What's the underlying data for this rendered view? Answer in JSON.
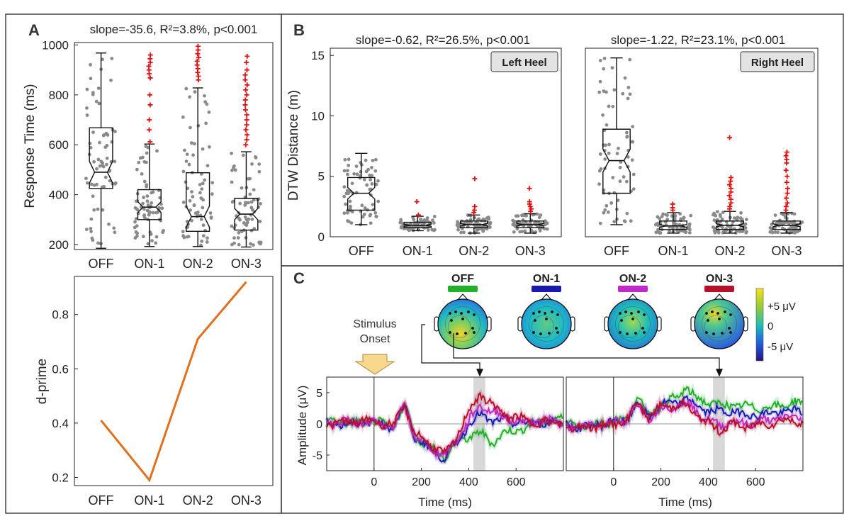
{
  "panels": {
    "a": {
      "letter": "A",
      "stats_text": "slope=-35.6, R²=3.8%, p<0.001",
      "ylabel": "Response Time (ms)",
      "ylabel2": "d-prime"
    },
    "b": {
      "letter": "B",
      "ylabel": "DTW Distance (m)",
      "left_stats": "slope=-0.62, R²=26.5%, p<0.001",
      "right_stats": "slope=-1.22, R²=23.1%, p<0.001",
      "left_tag": "Left Heel",
      "right_tag": "Right Heel"
    },
    "c": {
      "letter": "C",
      "stimulus_label_1": "Stimulus",
      "stimulus_label_2": "Onset",
      "colorbar_labels": [
        "+5 μV",
        "0",
        "-5 μV"
      ],
      "ylabel": "Amplitude (μV)",
      "xlabel": "Time (ms)"
    }
  },
  "colors": {
    "OFF": "#22b02a",
    "ON-1": "#1a1ab0",
    "ON-2": "#c028c8",
    "ON-3": "#b8102a",
    "line": "#e07020",
    "outlier": "#e01010",
    "points": "#8a8a8a"
  },
  "chart_data": [
    {
      "id": "a_box",
      "type": "box",
      "title": "slope=-35.6, R²=3.8%, p<0.001",
      "ylabel": "Response Time (ms)",
      "categories": [
        "OFF",
        "ON-1",
        "ON-2",
        "ON-3"
      ],
      "ylim": [
        180,
        1010
      ],
      "yticks": [
        200,
        400,
        600,
        800,
        1000
      ],
      "boxes": [
        {
          "q1": 425,
          "median": 490,
          "q3": 668,
          "whisker_low": 185,
          "whisker_high": 968,
          "outliers": []
        },
        {
          "q1": 300,
          "median": 350,
          "q3": 420,
          "whisker_low": 192,
          "whisker_high": 603,
          "outliers": [
            960,
            945,
            930,
            915,
            900,
            885,
            868,
            800,
            760,
            700,
            660,
            612
          ]
        },
        {
          "q1": 253,
          "median": 312,
          "q3": 488,
          "whisker_low": 192,
          "whisker_high": 828,
          "outliers": [
            995,
            980,
            965,
            950,
            935,
            920,
            905,
            890,
            875,
            860
          ]
        },
        {
          "q1": 258,
          "median": 322,
          "q3": 385,
          "whisker_low": 190,
          "whisker_high": 572,
          "outliers": [
            955,
            930,
            900,
            880,
            860,
            840,
            820,
            800,
            780,
            760,
            740,
            720,
            700,
            680,
            660,
            640,
            620,
            600
          ]
        }
      ]
    },
    {
      "id": "a_line",
      "type": "line",
      "ylabel": "d-prime",
      "categories": [
        "OFF",
        "ON-1",
        "ON-2",
        "ON-3"
      ],
      "values": [
        0.41,
        0.19,
        0.71,
        0.92
      ],
      "ylim": [
        0.17,
        0.94
      ],
      "yticks": [
        0.2,
        0.4,
        0.6,
        0.8
      ]
    },
    {
      "id": "b_left",
      "type": "box",
      "title": "slope=-0.62, R²=26.5%, p<0.001",
      "tag": "Left Heel",
      "ylabel": "DTW Distance (m)",
      "categories": [
        "OFF",
        "ON-1",
        "ON-2",
        "ON-3"
      ],
      "ylim": [
        0,
        15.6
      ],
      "yticks": [
        0,
        5,
        10,
        15
      ],
      "boxes": [
        {
          "q1": 2.2,
          "median": 3.6,
          "q3": 4.9,
          "whisker_low": 1.0,
          "whisker_high": 6.9,
          "outliers": []
        },
        {
          "q1": 0.75,
          "median": 0.95,
          "q3": 1.2,
          "whisker_low": 0.5,
          "whisker_high": 1.7,
          "outliers": [
            2.9,
            1.8
          ]
        },
        {
          "q1": 0.75,
          "median": 1.0,
          "q3": 1.3,
          "whisker_low": 0.3,
          "whisker_high": 1.8,
          "outliers": [
            4.8,
            2.5,
            2.2,
            2.0
          ]
        },
        {
          "q1": 0.75,
          "median": 1.0,
          "q3": 1.3,
          "whisker_low": 0.3,
          "whisker_high": 1.9,
          "outliers": [
            4.0,
            2.9,
            2.7,
            2.5,
            2.3,
            2.1
          ]
        }
      ]
    },
    {
      "id": "b_right",
      "type": "box",
      "title": "slope=-1.22, R²=23.1%, p<0.001",
      "tag": "Right Heel",
      "categories": [
        "OFF",
        "ON-1",
        "ON-2",
        "ON-3"
      ],
      "ylim": [
        0,
        15.6
      ],
      "boxes": [
        {
          "q1": 3.6,
          "median": 6.3,
          "q3": 8.9,
          "whisker_low": 1.0,
          "whisker_high": 14.8,
          "outliers": []
        },
        {
          "q1": 0.6,
          "median": 0.9,
          "q3": 1.3,
          "whisker_low": 0.3,
          "whisker_high": 2.0,
          "outliers": [
            2.7,
            2.4,
            2.2
          ]
        },
        {
          "q1": 0.6,
          "median": 0.95,
          "q3": 1.3,
          "whisker_low": 0.3,
          "whisker_high": 2.1,
          "outliers": [
            8.2,
            4.9,
            4.6,
            4.3,
            4.0,
            3.7,
            3.4,
            3.1,
            2.8,
            2.5,
            2.3
          ]
        },
        {
          "q1": 0.6,
          "median": 0.95,
          "q3": 1.3,
          "whisker_low": 0.3,
          "whisker_high": 2.0,
          "outliers": [
            7.0,
            6.7,
            6.4,
            6.1,
            5.5,
            5.0,
            4.5,
            4.0,
            3.6,
            3.2,
            2.8,
            2.5,
            2.2
          ]
        }
      ]
    },
    {
      "id": "c_erp",
      "type": "line",
      "ylabel": "Amplitude (μV)",
      "xlabel": "Time (ms)",
      "conditions": [
        "OFF",
        "ON-1",
        "ON-2",
        "ON-3"
      ],
      "topomap_titles": [
        "OFF",
        "ON-1",
        "ON-2",
        "ON-3"
      ],
      "xlim": [
        -200,
        800
      ],
      "xticks": [
        0,
        200,
        400,
        600
      ],
      "ylim": [
        -7.5,
        7.5
      ],
      "yticks": [
        -5,
        0,
        5
      ],
      "highlight_window": [
        420,
        470
      ],
      "left_series": [
        {
          "name": "OFF",
          "x": [
            -200,
            -100,
            0,
            80,
            130,
            170,
            250,
            300,
            350,
            400,
            450,
            500,
            550,
            650,
            700,
            800
          ],
          "y": [
            0.5,
            0.2,
            0.3,
            -0.5,
            3.0,
            -2.0,
            -4.0,
            -5.5,
            -3.0,
            -2.0,
            -1.5,
            -3.0,
            -1.5,
            -0.5,
            0.5,
            0.8
          ]
        },
        {
          "name": "ON-1",
          "x": [
            -200,
            -100,
            0,
            80,
            130,
            170,
            250,
            300,
            350,
            400,
            450,
            500,
            550,
            650,
            700,
            800
          ],
          "y": [
            0.2,
            0.0,
            0.3,
            -0.5,
            3.0,
            -2.0,
            -4.5,
            -5.5,
            -3.0,
            0.0,
            1.5,
            0.5,
            0.5,
            0.0,
            0.2,
            0.3
          ]
        },
        {
          "name": "ON-2",
          "x": [
            -200,
            -100,
            0,
            80,
            130,
            170,
            250,
            300,
            350,
            400,
            450,
            500,
            550,
            650,
            700,
            800
          ],
          "y": [
            0.3,
            0.4,
            0.2,
            -0.6,
            3.0,
            -2.0,
            -4.0,
            -5.0,
            -2.5,
            0.5,
            3.0,
            2.0,
            1.0,
            0.3,
            0.5,
            0.5
          ]
        },
        {
          "name": "ON-3",
          "x": [
            -200,
            -100,
            0,
            80,
            130,
            170,
            250,
            300,
            350,
            400,
            450,
            500,
            550,
            650,
            700,
            800
          ],
          "y": [
            0.0,
            0.3,
            0.5,
            -0.3,
            3.0,
            -1.5,
            -3.5,
            -5.0,
            -2.0,
            2.0,
            4.8,
            3.0,
            1.5,
            0.5,
            0.2,
            0.3
          ]
        }
      ],
      "right_series": [
        {
          "name": "OFF",
          "x": [
            -200,
            -100,
            0,
            50,
            100,
            150,
            200,
            280,
            300,
            350,
            400,
            450,
            500,
            550,
            650,
            700,
            800
          ],
          "y": [
            0.0,
            -0.2,
            0.5,
            0.5,
            4.0,
            1.5,
            3.0,
            4.5,
            6.0,
            4.0,
            3.5,
            3.0,
            3.0,
            2.8,
            2.5,
            3.0,
            3.5
          ]
        },
        {
          "name": "ON-1",
          "x": [
            -200,
            -100,
            0,
            50,
            100,
            150,
            200,
            280,
            300,
            350,
            400,
            450,
            500,
            550,
            650,
            700,
            800
          ],
          "y": [
            -0.3,
            -0.5,
            0.5,
            0.3,
            3.5,
            1.0,
            3.0,
            3.5,
            4.0,
            3.0,
            2.0,
            2.0,
            2.0,
            1.5,
            1.5,
            2.0,
            2.0
          ]
        },
        {
          "name": "ON-2",
          "x": [
            -200,
            -100,
            0,
            50,
            100,
            150,
            200,
            280,
            300,
            350,
            400,
            450,
            500,
            550,
            650,
            700,
            800
          ],
          "y": [
            -0.5,
            -0.3,
            0.3,
            0.4,
            3.0,
            1.0,
            2.5,
            3.0,
            3.5,
            2.0,
            0.5,
            -0.3,
            0.5,
            0.0,
            0.5,
            1.0,
            1.0
          ]
        },
        {
          "name": "ON-3",
          "x": [
            -200,
            -100,
            0,
            50,
            100,
            150,
            200,
            280,
            300,
            350,
            400,
            450,
            500,
            550,
            650,
            700,
            800
          ],
          "y": [
            -0.5,
            -0.5,
            0.0,
            0.3,
            3.5,
            1.0,
            2.8,
            3.0,
            3.0,
            1.5,
            0.0,
            -1.0,
            0.0,
            -0.5,
            0.0,
            0.5,
            0.5
          ]
        }
      ]
    }
  ]
}
